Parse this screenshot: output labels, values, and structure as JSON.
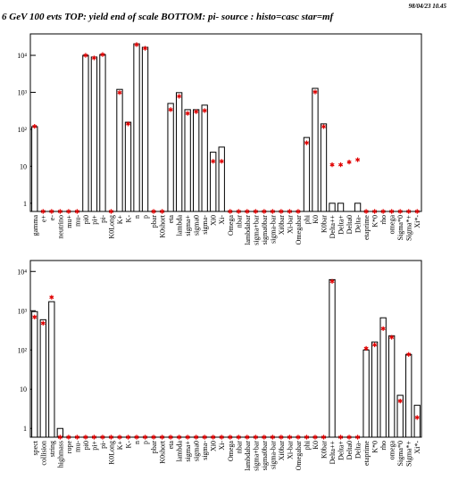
{
  "header": {
    "title": "6 GeV 100 evts TOP: yield end of scale BOTTOM: pi- source : histo=casc star=mf",
    "timestamp": "98/04/23  10.45"
  },
  "chart_data": [
    {
      "type": "bar",
      "log_y": true,
      "categories": [
        "gamma",
        "e+",
        "e-",
        "neutrino",
        "mu+",
        "mu-",
        "pi0",
        "pi+",
        "pi-",
        "K0Long",
        "K+",
        "K-",
        "n",
        "p",
        "pbar",
        "K0short",
        "eta",
        "lambda",
        "sigma+",
        "sigma0",
        "sigma-",
        "Xi0",
        "Xi-",
        "Omega",
        "nbar",
        "lambdabar",
        "sigma+bar",
        "sigma0bar",
        "sigma-bar",
        "Xi0bar",
        "Xi-bar",
        "Omegabar",
        "phi",
        "K0",
        "K0bar",
        "Delta++",
        "Delta+",
        "Delta0",
        "Delta-",
        "etaprime",
        "K*0",
        "rho",
        "omega",
        "Sigma*0",
        "Sigma*+",
        "Xi*-"
      ],
      "series": [
        {
          "color": "#000000",
          "marker": "histogram",
          "values": [
            118,
            0,
            0,
            0,
            0,
            0,
            10000,
            9000,
            10500,
            0,
            1200,
            155,
            20500,
            16500,
            0,
            0,
            500,
            980,
            340,
            340,
            450,
            24,
            33,
            0,
            0,
            0,
            0,
            0,
            0,
            0,
            0,
            0,
            60,
            1280,
            140,
            1,
            1,
            0,
            1,
            0,
            0,
            0,
            0,
            0,
            0,
            0
          ]
        },
        {
          "color": "#e00000",
          "marker": "star",
          "values": [
            120,
            0,
            0,
            0,
            0,
            0,
            10000,
            8500,
            10500,
            0,
            980,
            140,
            19500,
            15500,
            0,
            0,
            340,
            780,
            270,
            300,
            320,
            13.6,
            13.6,
            0,
            0,
            0,
            0,
            0,
            0,
            0,
            0,
            0,
            43,
            1020,
            118,
            11,
            11,
            13,
            15,
            0,
            0,
            0,
            0,
            0,
            0,
            0
          ]
        }
      ],
      "ylim": [
        0.6,
        38000
      ],
      "yticks": [
        1,
        10,
        {
          "value": 100,
          "label": "10²"
        },
        {
          "value": 1000,
          "label": "10³"
        },
        {
          "value": 10000,
          "label": "10⁴"
        }
      ]
    },
    {
      "type": "bar",
      "log_y": true,
      "categories": [
        "spect",
        "collision",
        "string",
        "highmass",
        "rope",
        "mu-",
        "pi0",
        "pi+",
        "pi-",
        "K0Long",
        "K+",
        "K-",
        "n",
        "p",
        "pbar",
        "K0short",
        "eta",
        "lambda",
        "sigma+",
        "sigma0",
        "sigma-",
        "Xi0",
        "Xi-",
        "Omega",
        "nbar",
        "lambdabar",
        "sigma+bar",
        "sigma0bar",
        "sigma-bar",
        "Xi0bar",
        "Xi-bar",
        "Omegabar",
        "phi",
        "K0",
        "K0bar",
        "Delta++",
        "Delta+",
        "Delta0",
        "Delta-",
        "etaprime",
        "K*0",
        "rho",
        "omega",
        "Sigma*0",
        "Sigma*+",
        "Xi*-"
      ],
      "series": [
        {
          "color": "#000000",
          "marker": "histogram",
          "values": [
            950,
            590,
            1700,
            1,
            0,
            0,
            0,
            0,
            0,
            0,
            0,
            0,
            0,
            0,
            0,
            0,
            0,
            0,
            0,
            0,
            0,
            0,
            0,
            0,
            0,
            0,
            0,
            0,
            0,
            0,
            0,
            0,
            0,
            0,
            0,
            6200,
            0,
            0,
            0,
            100,
            160,
            660,
            230,
            7,
            77,
            3.9
          ]
        },
        {
          "color": "#e00000",
          "marker": "star",
          "values": [
            690,
            480,
            2200,
            0,
            0,
            0,
            0,
            0,
            0,
            0,
            0,
            0,
            0,
            0,
            0,
            0,
            0,
            0,
            0,
            0,
            0,
            0,
            0,
            0,
            0,
            0,
            0,
            0,
            0,
            0,
            0,
            0,
            0,
            0,
            0,
            5600,
            0,
            0,
            0,
            110,
            135,
            350,
            210,
            5,
            77,
            1.9
          ]
        }
      ],
      "ylim": [
        0.6,
        19000
      ],
      "yticks": [
        1,
        10,
        {
          "value": 100,
          "label": "10²"
        },
        {
          "value": 1000,
          "label": "10³"
        },
        {
          "value": 10000,
          "label": "10⁴"
        }
      ]
    }
  ]
}
